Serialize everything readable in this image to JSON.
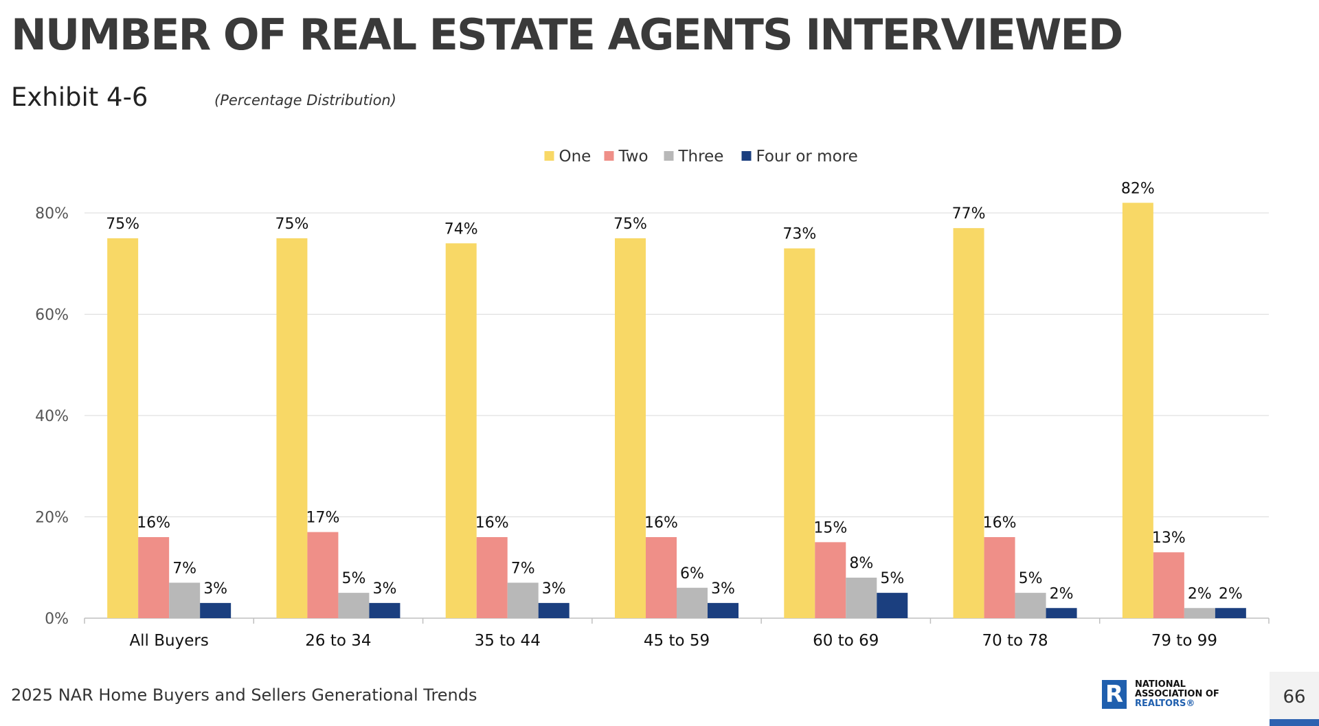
{
  "header": {
    "title": "NUMBER OF REAL ESTATE AGENTS INTERVIEWED",
    "exhibit": "Exhibit 4-6",
    "subtitle": "(Percentage Distribution)"
  },
  "footer": {
    "source": "2025 NAR Home Buyers and Sellers Generational Trends",
    "logo_lines": [
      "NATIONAL",
      "ASSOCIATION OF",
      "REALTORS®"
    ],
    "page_number": "66"
  },
  "chart_data": {
    "type": "bar",
    "categories": [
      "All Buyers",
      "26 to 34",
      "35 to 44",
      "45 to 59",
      "60 to 69",
      "70 to 78",
      "79 to 99"
    ],
    "series": [
      {
        "name": "One",
        "color": "#f8d866",
        "values": [
          75,
          75,
          74,
          75,
          73,
          77,
          82
        ]
      },
      {
        "name": "Two",
        "color": "#ef8f88",
        "values": [
          16,
          17,
          16,
          16,
          15,
          16,
          13
        ]
      },
      {
        "name": "Three",
        "color": "#b8b8b8",
        "values": [
          7,
          5,
          7,
          6,
          8,
          5,
          2
        ]
      },
      {
        "name": "Four or more",
        "color": "#1b3f7f",
        "values": [
          3,
          3,
          3,
          3,
          5,
          2,
          2
        ]
      }
    ],
    "ylim": [
      0,
      80
    ],
    "yticks": [
      0,
      20,
      40,
      60,
      80
    ],
    "value_suffix": "%",
    "grid": true,
    "legend_position": "top-center"
  }
}
